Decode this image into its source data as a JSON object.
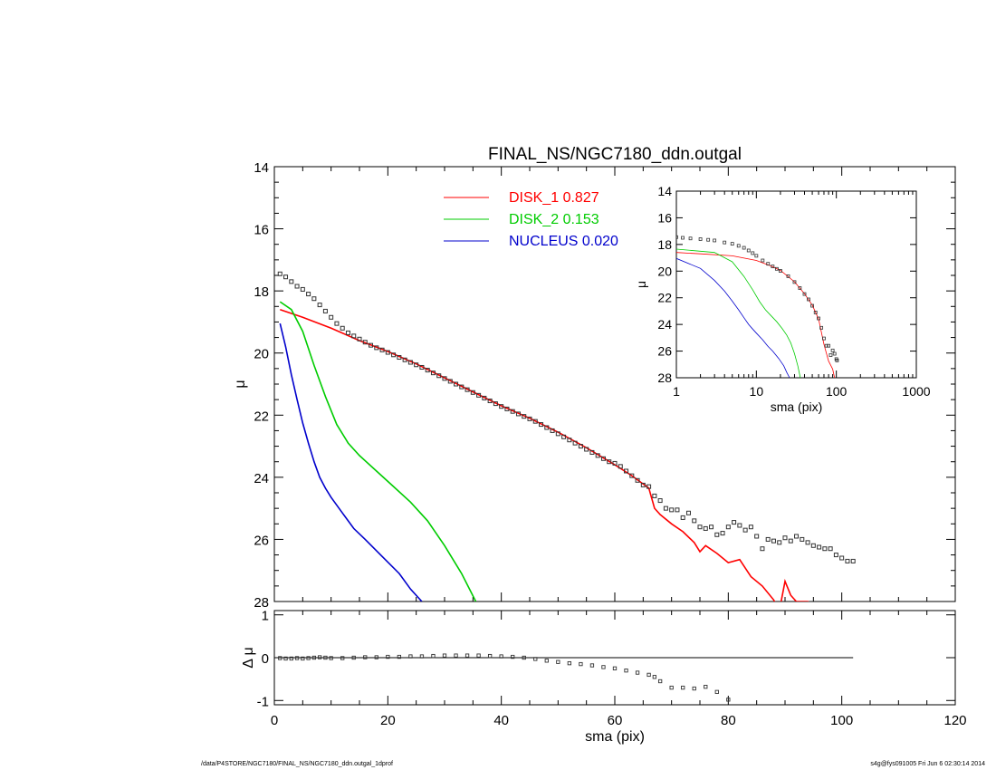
{
  "footer": {
    "left": "/data/P4STORE/NGC7180/FINAL_NS/NGC7180_ddn.outgal_1dprof",
    "right": "s4g@fys091005  Fri Jun  6 02:30:14 2014"
  },
  "chart_data": [
    {
      "id": "main",
      "type": "line",
      "title": "FINAL_NS/NGC7180_ddn.outgal",
      "xlabel": "",
      "ylabel": "μ",
      "xlim": [
        0,
        120
      ],
      "ylim": [
        28,
        14
      ],
      "yticks": [
        "14",
        "16",
        "18",
        "20",
        "22",
        "24",
        "26",
        "28"
      ],
      "legend": "top-center",
      "series": [
        {
          "name": "DISK_1",
          "label_value": "0.827",
          "color": "#ff0000",
          "x": [
            1,
            5,
            10,
            15,
            20,
            25,
            30,
            35,
            40,
            45,
            50,
            55,
            60,
            63,
            66,
            67,
            68,
            70,
            72,
            74,
            75,
            76,
            78,
            80,
            82,
            84,
            86,
            88,
            89,
            90,
            91,
            92,
            94,
            95
          ],
          "y": [
            18.6,
            18.85,
            19.2,
            19.6,
            19.95,
            20.35,
            20.8,
            21.25,
            21.7,
            22.1,
            22.55,
            23.05,
            23.6,
            23.95,
            24.35,
            25.0,
            25.2,
            25.5,
            25.75,
            26.1,
            26.4,
            26.2,
            26.45,
            26.75,
            26.65,
            27.2,
            27.5,
            27.95,
            28.3,
            27.35,
            27.8,
            28.0,
            28.0,
            28.1
          ]
        },
        {
          "name": "DISK_2",
          "label_value": "0.153",
          "color": "#00cc00",
          "x": [
            1,
            3,
            5,
            7,
            9,
            11,
            13,
            15,
            18,
            21,
            24,
            27,
            30,
            33,
            35.5
          ],
          "y": [
            18.35,
            18.6,
            19.3,
            20.4,
            21.4,
            22.3,
            22.9,
            23.3,
            23.8,
            24.3,
            24.8,
            25.4,
            26.2,
            27.1,
            28.0
          ]
        },
        {
          "name": "NUCLEUS",
          "label_value": "0.020",
          "color": "#0000cc",
          "x": [
            1,
            2,
            3,
            4,
            5,
            6,
            7,
            8,
            9,
            10,
            12,
            14,
            16,
            19,
            22,
            24,
            26
          ],
          "y": [
            19.05,
            19.8,
            20.7,
            21.5,
            22.25,
            22.9,
            23.5,
            24.0,
            24.35,
            24.65,
            25.15,
            25.65,
            26.0,
            26.55,
            27.1,
            27.6,
            28.0
          ]
        },
        {
          "name": "data",
          "color": "#333333",
          "markers": "open-square",
          "x": [
            1,
            2,
            3,
            4,
            5,
            6,
            7,
            8,
            9,
            10,
            11,
            12,
            13,
            14,
            15,
            16,
            17,
            18,
            19,
            20,
            21,
            22,
            23,
            24,
            25,
            26,
            27,
            28,
            29,
            30,
            31,
            32,
            33,
            34,
            35,
            36,
            37,
            38,
            39,
            40,
            41,
            42,
            43,
            44,
            45,
            46,
            47,
            48,
            49,
            50,
            51,
            52,
            53,
            54,
            55,
            56,
            57,
            58,
            59,
            60,
            61,
            62,
            63,
            64,
            65,
            66,
            67,
            68,
            69,
            70,
            71,
            72,
            73,
            74,
            75,
            76,
            77,
            78,
            79,
            80,
            81,
            82,
            83,
            84,
            85,
            86,
            87,
            88,
            89,
            90,
            91,
            92,
            93,
            94,
            95,
            96,
            97,
            98,
            99,
            100,
            101,
            102
          ],
          "y": [
            17.45,
            17.55,
            17.7,
            17.85,
            17.95,
            18.1,
            18.25,
            18.45,
            18.65,
            18.85,
            19.05,
            19.2,
            19.35,
            19.45,
            19.55,
            19.65,
            19.75,
            19.83,
            19.9,
            19.98,
            20.06,
            20.14,
            20.22,
            20.3,
            20.38,
            20.46,
            20.55,
            20.64,
            20.73,
            20.82,
            20.91,
            21.0,
            21.09,
            21.18,
            21.27,
            21.36,
            21.45,
            21.54,
            21.63,
            21.72,
            21.8,
            21.88,
            21.96,
            22.04,
            22.12,
            22.2,
            22.3,
            22.4,
            22.5,
            22.6,
            22.7,
            22.8,
            22.9,
            23.0,
            23.1,
            23.2,
            23.3,
            23.4,
            23.5,
            23.55,
            23.65,
            23.8,
            23.95,
            24.1,
            24.25,
            24.3,
            24.6,
            24.75,
            25.0,
            25.05,
            25.05,
            25.3,
            25.15,
            25.4,
            25.6,
            25.65,
            25.6,
            25.85,
            25.8,
            25.6,
            25.45,
            25.55,
            25.7,
            25.6,
            25.9,
            26.3,
            26.0,
            26.05,
            26.1,
            25.95,
            26.05,
            25.9,
            26.0,
            26.1,
            26.2,
            26.25,
            26.3,
            26.3,
            26.5,
            26.6,
            26.7,
            26.7
          ]
        }
      ]
    },
    {
      "id": "residual",
      "type": "scatter",
      "xlabel": "sma (pix)",
      "ylabel": "Δ μ",
      "xlim": [
        0,
        120
      ],
      "ylim": [
        -1.1,
        1.1
      ],
      "xticks": [
        "0",
        "20",
        "40",
        "60",
        "80",
        "100",
        "120"
      ],
      "yticks": [
        "-1",
        "0",
        "1"
      ],
      "zero_line_xlim": [
        0,
        102
      ],
      "series": [
        {
          "name": "residual",
          "markers": "open-square",
          "x": [
            1,
            2,
            3,
            4,
            5,
            6,
            7,
            8,
            9,
            10,
            12,
            14,
            16,
            18,
            20,
            22,
            24,
            26,
            28,
            30,
            32,
            34,
            36,
            38,
            40,
            42,
            44,
            46,
            48,
            50,
            52,
            54,
            56,
            58,
            60,
            62,
            64,
            66,
            67,
            68,
            70,
            72,
            74,
            76,
            78,
            80
          ],
          "y": [
            -0.01,
            -0.02,
            -0.02,
            -0.01,
            -0.02,
            -0.01,
            0.0,
            0.01,
            0.0,
            -0.01,
            -0.01,
            0.0,
            0.01,
            0.01,
            0.02,
            0.02,
            0.03,
            0.03,
            0.04,
            0.05,
            0.05,
            0.05,
            0.05,
            0.04,
            0.03,
            0.02,
            0.0,
            -0.03,
            -0.07,
            -0.1,
            -0.13,
            -0.15,
            -0.18,
            -0.22,
            -0.25,
            -0.3,
            -0.35,
            -0.4,
            -0.45,
            -0.55,
            -0.7,
            -0.7,
            -0.72,
            -0.68,
            -0.8,
            -0.98
          ]
        }
      ]
    },
    {
      "id": "inset",
      "type": "line",
      "xlabel": "sma (pix)",
      "ylabel": "μ",
      "xscale": "log",
      "xlim": [
        1,
        1000
      ],
      "ylim": [
        28,
        14
      ],
      "xticks": [
        "1",
        "10",
        "100",
        "1000"
      ],
      "yticks": [
        "14",
        "16",
        "18",
        "20",
        "22",
        "24",
        "26",
        "28"
      ],
      "series": [
        {
          "name": "DISK_1",
          "color": "#ff0000",
          "x": [
            1,
            2,
            5,
            10,
            15,
            20,
            30,
            40,
            50,
            60,
            70,
            80,
            90,
            95
          ],
          "y": [
            18.6,
            18.7,
            18.85,
            19.2,
            19.6,
            19.95,
            20.8,
            21.7,
            22.55,
            23.6,
            25.5,
            26.75,
            27.35,
            28.0
          ]
        },
        {
          "name": "DISK_2",
          "color": "#00cc00",
          "x": [
            1,
            3,
            5,
            7,
            9,
            11,
            13,
            15,
            18,
            21,
            24,
            27,
            30,
            33,
            35.5
          ],
          "y": [
            18.35,
            18.6,
            19.3,
            20.4,
            21.4,
            22.3,
            22.9,
            23.3,
            23.8,
            24.3,
            24.8,
            25.4,
            26.2,
            27.1,
            28.0
          ]
        },
        {
          "name": "NUCLEUS",
          "color": "#0000cc",
          "x": [
            1,
            2,
            3,
            4,
            5,
            6,
            7,
            8,
            9,
            10,
            12,
            14,
            16,
            19,
            22,
            24,
            26
          ],
          "y": [
            19.05,
            19.8,
            20.7,
            21.5,
            22.25,
            22.9,
            23.5,
            24.0,
            24.35,
            24.65,
            25.15,
            25.65,
            26.0,
            26.55,
            27.1,
            27.6,
            28.0
          ]
        },
        {
          "name": "data",
          "color": "#333333",
          "markers": "open-square",
          "x": [
            1,
            1.2,
            1.5,
            2,
            2.5,
            3,
            4,
            5,
            6,
            7,
            8,
            9,
            10,
            12,
            14,
            16,
            18,
            20,
            25,
            30,
            35,
            40,
            45,
            50,
            55,
            60,
            65,
            70,
            75,
            80,
            85,
            90,
            95,
            100,
            102
          ],
          "y": [
            17.45,
            17.5,
            17.55,
            17.6,
            17.65,
            17.7,
            17.85,
            17.95,
            18.1,
            18.25,
            18.45,
            18.65,
            18.85,
            19.2,
            19.45,
            19.65,
            19.83,
            19.98,
            20.38,
            20.82,
            21.27,
            21.72,
            22.12,
            22.6,
            23.1,
            23.55,
            24.25,
            25.05,
            25.6,
            25.6,
            26.3,
            25.95,
            26.2,
            26.6,
            26.7
          ]
        }
      ]
    }
  ]
}
